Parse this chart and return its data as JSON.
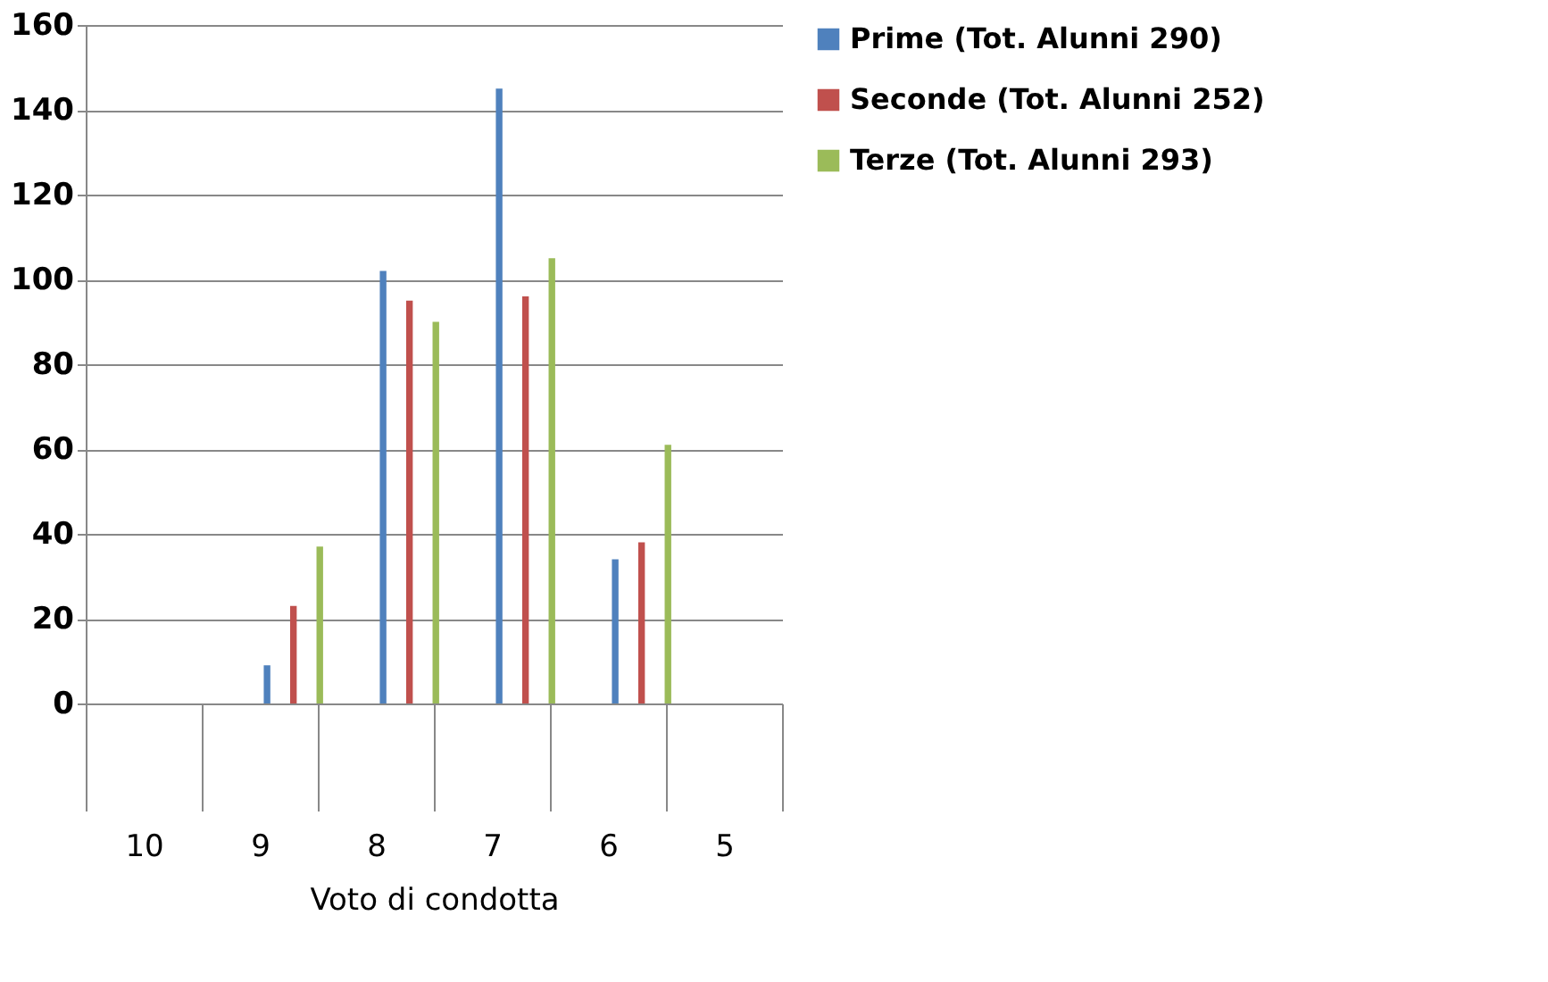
{
  "chart_data": {
    "type": "bar",
    "xlabel": "Voto di condotta",
    "categories": [
      "10",
      "9",
      "8",
      "7",
      "6",
      "5"
    ],
    "series": [
      {
        "name": "Prime (Tot. Alunni 290)",
        "color": "#4f81bd",
        "values": [
          0,
          9,
          102,
          145,
          34,
          0
        ]
      },
      {
        "name": "Seconde (Tot. Alunni 252)",
        "color": "#c0504d",
        "values": [
          0,
          23,
          95,
          96,
          38,
          0
        ]
      },
      {
        "name": "Terze (Tot. Alunni 293)",
        "color": "#9bbb59",
        "values": [
          0,
          37,
          90,
          105,
          61,
          0
        ]
      }
    ],
    "ylim": [
      0,
      160
    ],
    "yticks": [
      0,
      20,
      40,
      60,
      80,
      100,
      120,
      140,
      160
    ],
    "grid": "y",
    "legend": "right"
  }
}
